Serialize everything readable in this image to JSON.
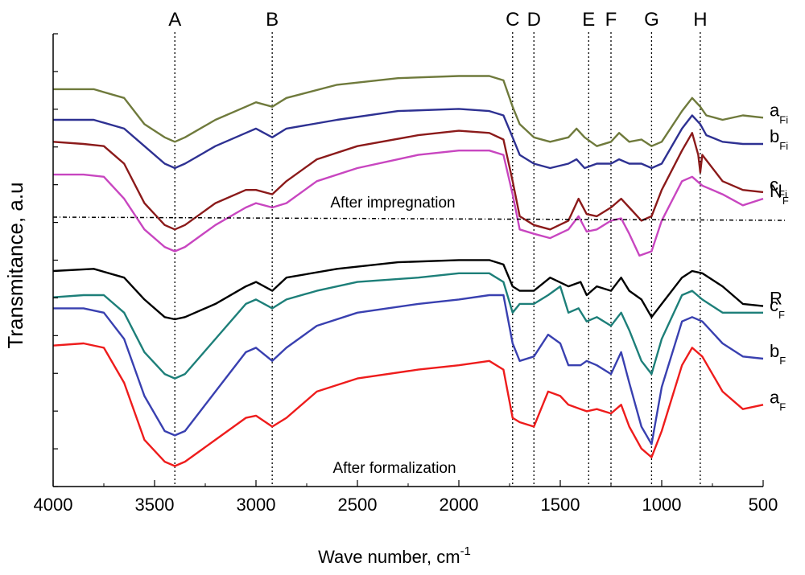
{
  "chart_data": {
    "type": "line",
    "title": "",
    "xlabel": "Wave number, cm",
    "xlabel_superscript": "-1",
    "ylabel": "Transmitance, a.u",
    "xlim": [
      4000,
      500
    ],
    "x_ticks": [
      4000,
      3500,
      3000,
      2500,
      2000,
      1500,
      1000,
      500
    ],
    "x_tick_labels": [
      "4000",
      "3500",
      "3000",
      "2500",
      "2000",
      "1500",
      "1000",
      "500"
    ],
    "grid": false,
    "peaks": [
      {
        "label": "A",
        "x": 3400
      },
      {
        "label": "B",
        "x": 2920
      },
      {
        "label": "C",
        "x": 1735
      },
      {
        "label": "D",
        "x": 1630
      },
      {
        "label": "E",
        "x": 1360
      },
      {
        "label": "F",
        "x": 1250
      },
      {
        "label": "G",
        "x": 1050
      },
      {
        "label": "H",
        "x": 810
      }
    ],
    "annotations": {
      "upper": "After impregnation",
      "lower": "After formalization"
    },
    "groups": [
      {
        "name": "After impregnation",
        "series": [
          "a_Fi",
          "b_Fi",
          "c_Fi",
          "N_F"
        ]
      },
      {
        "name": "After formalization",
        "series": [
          "R",
          "c_F",
          "b_F",
          "a_F"
        ]
      }
    ],
    "series": [
      {
        "id": "a_Fi",
        "name": "a",
        "sub": "Fi",
        "color": "#6f7a3c",
        "x": [
          4000,
          3800,
          3650,
          3550,
          3450,
          3400,
          3350,
          3200,
          3050,
          3000,
          2920,
          2850,
          2600,
          2300,
          2000,
          1850,
          1780,
          1735,
          1700,
          1630,
          1550,
          1460,
          1420,
          1380,
          1320,
          1250,
          1210,
          1160,
          1100,
          1050,
          1000,
          900,
          850,
          810,
          780,
          700,
          600,
          500
        ],
        "values": [
          0.87,
          0.87,
          0.85,
          0.79,
          0.76,
          0.75,
          0.76,
          0.8,
          0.83,
          0.84,
          0.83,
          0.85,
          0.88,
          0.895,
          0.9,
          0.9,
          0.89,
          0.83,
          0.79,
          0.76,
          0.75,
          0.76,
          0.78,
          0.76,
          0.74,
          0.75,
          0.77,
          0.75,
          0.755,
          0.74,
          0.75,
          0.82,
          0.85,
          0.83,
          0.81,
          0.8,
          0.81,
          0.805
        ]
      },
      {
        "id": "b_Fi",
        "name": "b",
        "sub": "Fi",
        "color": "#2e3192",
        "x": [
          4000,
          3800,
          3650,
          3550,
          3450,
          3400,
          3350,
          3200,
          3050,
          3000,
          2920,
          2850,
          2600,
          2300,
          2000,
          1850,
          1780,
          1735,
          1700,
          1630,
          1550,
          1460,
          1420,
          1380,
          1320,
          1250,
          1210,
          1160,
          1100,
          1050,
          1000,
          900,
          850,
          810,
          780,
          700,
          600,
          500
        ],
        "values": [
          0.8,
          0.8,
          0.78,
          0.74,
          0.7,
          0.69,
          0.7,
          0.74,
          0.77,
          0.78,
          0.76,
          0.78,
          0.8,
          0.82,
          0.825,
          0.82,
          0.81,
          0.76,
          0.72,
          0.7,
          0.69,
          0.7,
          0.71,
          0.69,
          0.7,
          0.7,
          0.71,
          0.7,
          0.7,
          0.69,
          0.7,
          0.78,
          0.81,
          0.79,
          0.765,
          0.75,
          0.745,
          0.745
        ]
      },
      {
        "id": "c_Fi",
        "name": "c",
        "sub": "Fi",
        "color": "#8b1a1a",
        "x": [
          4000,
          3850,
          3750,
          3650,
          3550,
          3450,
          3400,
          3350,
          3200,
          3050,
          3000,
          2920,
          2850,
          2700,
          2500,
          2200,
          2000,
          1850,
          1780,
          1735,
          1700,
          1630,
          1550,
          1460,
          1410,
          1370,
          1320,
          1250,
          1200,
          1160,
          1100,
          1050,
          1000,
          900,
          850,
          820,
          810,
          800,
          700,
          600,
          500
        ],
        "values": [
          0.75,
          0.745,
          0.74,
          0.7,
          0.61,
          0.56,
          0.55,
          0.56,
          0.61,
          0.64,
          0.64,
          0.63,
          0.66,
          0.71,
          0.74,
          0.765,
          0.775,
          0.77,
          0.755,
          0.66,
          0.58,
          0.56,
          0.55,
          0.57,
          0.62,
          0.585,
          0.58,
          0.6,
          0.62,
          0.6,
          0.57,
          0.58,
          0.64,
          0.73,
          0.77,
          0.72,
          0.68,
          0.72,
          0.66,
          0.64,
          0.635
        ]
      },
      {
        "id": "N_F",
        "name": "N",
        "sub": "F",
        "color": "#c846c0",
        "x": [
          4000,
          3850,
          3750,
          3650,
          3550,
          3450,
          3400,
          3350,
          3200,
          3050,
          3000,
          2920,
          2850,
          2700,
          2500,
          2300,
          2200,
          2000,
          1850,
          1780,
          1735,
          1700,
          1630,
          1550,
          1460,
          1410,
          1370,
          1320,
          1250,
          1200,
          1160,
          1110,
          1050,
          1000,
          900,
          850,
          800,
          700,
          600,
          500
        ],
        "values": [
          0.675,
          0.675,
          0.67,
          0.62,
          0.55,
          0.51,
          0.5,
          0.51,
          0.56,
          0.6,
          0.61,
          0.6,
          0.61,
          0.66,
          0.69,
          0.71,
          0.72,
          0.73,
          0.73,
          0.72,
          0.63,
          0.55,
          0.54,
          0.53,
          0.55,
          0.58,
          0.545,
          0.55,
          0.57,
          0.575,
          0.54,
          0.49,
          0.5,
          0.57,
          0.66,
          0.67,
          0.65,
          0.63,
          0.605,
          0.62
        ]
      },
      {
        "id": "R",
        "name": "R",
        "sub": "",
        "color": "#000000",
        "x": [
          4000,
          3800,
          3650,
          3550,
          3450,
          3400,
          3350,
          3200,
          3050,
          3000,
          2920,
          2850,
          2600,
          2300,
          2000,
          1850,
          1780,
          1735,
          1700,
          1630,
          1550,
          1460,
          1400,
          1370,
          1320,
          1250,
          1200,
          1160,
          1100,
          1050,
          1000,
          900,
          850,
          800,
          700,
          600,
          500
        ],
        "values": [
          0.455,
          0.46,
          0.44,
          0.39,
          0.35,
          0.345,
          0.35,
          0.38,
          0.42,
          0.43,
          0.41,
          0.44,
          0.46,
          0.475,
          0.48,
          0.48,
          0.47,
          0.42,
          0.41,
          0.41,
          0.44,
          0.42,
          0.43,
          0.4,
          0.42,
          0.41,
          0.44,
          0.41,
          0.39,
          0.35,
          0.38,
          0.44,
          0.455,
          0.45,
          0.42,
          0.38,
          0.375
        ]
      },
      {
        "id": "c_F",
        "name": "c",
        "sub": "F",
        "color": "#1d7f79",
        "x": [
          4000,
          3850,
          3750,
          3650,
          3550,
          3450,
          3400,
          3350,
          3200,
          3050,
          3000,
          2920,
          2850,
          2700,
          2500,
          2200,
          2000,
          1850,
          1780,
          1735,
          1700,
          1630,
          1560,
          1500,
          1460,
          1410,
          1370,
          1320,
          1250,
          1200,
          1160,
          1100,
          1050,
          1000,
          900,
          850,
          800,
          700,
          600,
          500
        ],
        "values": [
          0.395,
          0.4,
          0.4,
          0.36,
          0.27,
          0.22,
          0.21,
          0.22,
          0.3,
          0.38,
          0.39,
          0.37,
          0.39,
          0.41,
          0.43,
          0.44,
          0.45,
          0.45,
          0.43,
          0.36,
          0.38,
          0.38,
          0.4,
          0.42,
          0.36,
          0.37,
          0.34,
          0.35,
          0.33,
          0.36,
          0.32,
          0.25,
          0.22,
          0.3,
          0.4,
          0.41,
          0.39,
          0.36,
          0.36,
          0.36
        ]
      },
      {
        "id": "b_F",
        "name": "b",
        "sub": "F",
        "color": "#3940b0",
        "x": [
          4000,
          3850,
          3750,
          3650,
          3550,
          3450,
          3400,
          3350,
          3200,
          3050,
          3000,
          2920,
          2850,
          2700,
          2500,
          2200,
          2000,
          1850,
          1780,
          1735,
          1700,
          1630,
          1560,
          1500,
          1460,
          1400,
          1370,
          1320,
          1250,
          1200,
          1160,
          1100,
          1050,
          1000,
          900,
          850,
          800,
          700,
          600,
          500
        ],
        "values": [
          0.37,
          0.37,
          0.36,
          0.3,
          0.17,
          0.09,
          0.08,
          0.09,
          0.18,
          0.27,
          0.28,
          0.25,
          0.28,
          0.33,
          0.36,
          0.38,
          0.39,
          0.4,
          0.4,
          0.29,
          0.25,
          0.26,
          0.31,
          0.29,
          0.24,
          0.24,
          0.25,
          0.24,
          0.22,
          0.27,
          0.2,
          0.1,
          0.06,
          0.19,
          0.34,
          0.35,
          0.34,
          0.29,
          0.26,
          0.255
        ]
      },
      {
        "id": "a_F",
        "name": "a",
        "sub": "F",
        "color": "#ee1c1c",
        "x": [
          4000,
          3850,
          3750,
          3650,
          3550,
          3450,
          3400,
          3350,
          3200,
          3050,
          3000,
          2920,
          2850,
          2700,
          2500,
          2200,
          2000,
          1850,
          1780,
          1735,
          1700,
          1630,
          1560,
          1500,
          1460,
          1400,
          1370,
          1320,
          1250,
          1200,
          1160,
          1100,
          1050,
          1000,
          900,
          850,
          800,
          700,
          600,
          500
        ],
        "values": [
          0.285,
          0.29,
          0.28,
          0.2,
          0.07,
          0.02,
          0.01,
          0.02,
          0.07,
          0.12,
          0.125,
          0.1,
          0.12,
          0.18,
          0.21,
          0.23,
          0.24,
          0.25,
          0.23,
          0.12,
          0.11,
          0.1,
          0.18,
          0.17,
          0.15,
          0.14,
          0.135,
          0.14,
          0.13,
          0.15,
          0.1,
          0.05,
          0.03,
          0.09,
          0.24,
          0.28,
          0.26,
          0.18,
          0.14,
          0.15
        ]
      }
    ]
  }
}
